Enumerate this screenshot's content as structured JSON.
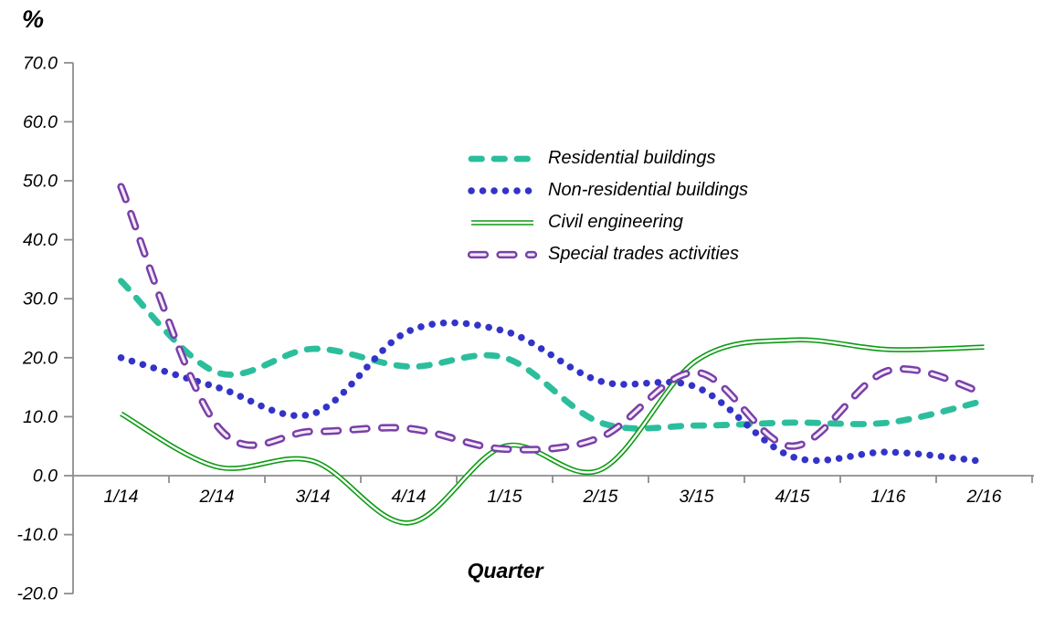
{
  "page": {
    "background": "#ffffff",
    "axis_color": "#8c8c8c",
    "text_color": "#000000"
  },
  "chart_data": {
    "type": "line",
    "title": "",
    "ylabel": "%",
    "xlabel": "Quarter",
    "categories": [
      "1/14",
      "2/14",
      "3/14",
      "4/14",
      "1/15",
      "2/15",
      "3/15",
      "4/15",
      "1/16",
      "2/16"
    ],
    "y_axis": {
      "min": -20,
      "max": 70,
      "tick_step": 10,
      "decimals": 1
    },
    "grid": false,
    "legend_position": "inside-top-center",
    "series": [
      {
        "name": "Residential buildings",
        "color": "#2CBE9C",
        "style": "dashed",
        "values": [
          33,
          17.5,
          21.5,
          18.5,
          20,
          9,
          8.5,
          9,
          9,
          12.7
        ]
      },
      {
        "name": "Non-residential buildings",
        "color": "#3333C8",
        "style": "dotted",
        "values": [
          20,
          15,
          10.5,
          24.5,
          24.5,
          16,
          15,
          3.2,
          4,
          2.4
        ]
      },
      {
        "name": "Civil engineering",
        "color": "#0D9B14",
        "inner_color": "#ffffff",
        "style": "solid-outlined",
        "values": [
          10.5,
          1.5,
          2.5,
          -8,
          5,
          1,
          19.5,
          23,
          21.4,
          21.8
        ]
      },
      {
        "name": "Special trades activities",
        "color": "#7A3FA8",
        "inner_color": "#F2EBF8",
        "style": "dashed-outlined",
        "values": [
          49,
          8.5,
          7.5,
          8,
          4.5,
          6.5,
          17.5,
          5,
          17.8,
          14
        ]
      }
    ]
  }
}
